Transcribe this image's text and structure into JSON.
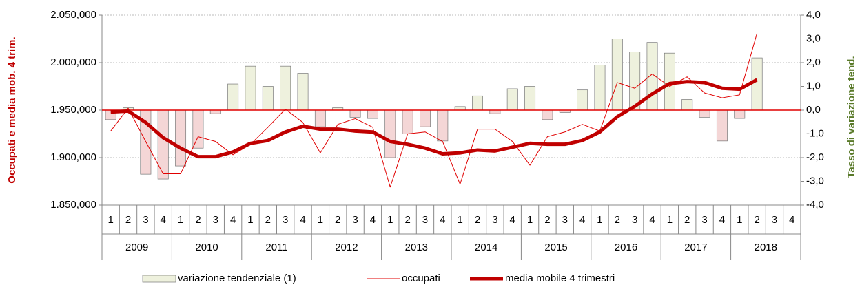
{
  "chart_data": {
    "type": "combo",
    "y_label": "Occupati e media mob. 4 trim.",
    "y2_label": "Tasso di variazione tend.",
    "categories": [
      "1",
      "2",
      "3",
      "4",
      "1",
      "2",
      "3",
      "4",
      "1",
      "2",
      "3",
      "4",
      "1",
      "2",
      "3",
      "4",
      "1",
      "2",
      "3",
      "4",
      "1",
      "2",
      "3",
      "4",
      "1",
      "2",
      "3",
      "4",
      "1",
      "2",
      "3",
      "4",
      "1",
      "2",
      "3",
      "4",
      "1",
      "2",
      "3",
      "4"
    ],
    "years": [
      "2009",
      "2010",
      "2011",
      "2012",
      "2013",
      "2014",
      "2015",
      "2016",
      "2017",
      "2018"
    ],
    "ylim": [
      1850000,
      2050000
    ],
    "yticks": [
      {
        "value": 1850000,
        "label": "1.850,000"
      },
      {
        "value": 1900000,
        "label": "1.900,000"
      },
      {
        "value": 1950000,
        "label": "1.950,000"
      },
      {
        "value": 2000000,
        "label": "2.000,000"
      },
      {
        "value": 2050000,
        "label": "2.050,000"
      }
    ],
    "y2lim": [
      -4,
      4
    ],
    "y2ticks": [
      {
        "value": -4,
        "label": "-4,0"
      },
      {
        "value": -3,
        "label": "-3,0"
      },
      {
        "value": -2,
        "label": "-2,0"
      },
      {
        "value": -1,
        "label": "-1,0"
      },
      {
        "value": 0,
        "label": "0,0"
      },
      {
        "value": 1,
        "label": "1,0"
      },
      {
        "value": 2,
        "label": "2,0"
      },
      {
        "value": 3,
        "label": "3,0"
      },
      {
        "value": 4,
        "label": "4,0"
      }
    ],
    "grid": true,
    "series": [
      {
        "name": "variazione tendenziale (1)",
        "kind": "bar",
        "axis": "y2",
        "color": "#eef1dd",
        "negative_color": "#f4d6d6",
        "values": [
          -0.4,
          0.1,
          -2.7,
          -2.9,
          -2.35,
          -1.6,
          -0.15,
          1.1,
          1.85,
          1.0,
          1.85,
          1.55,
          -0.7,
          0.1,
          -0.3,
          -0.35,
          -2.0,
          -1.0,
          -0.7,
          -1.3,
          0.15,
          0.6,
          -0.15,
          0.9,
          1.0,
          -0.4,
          -0.1,
          0.85,
          1.9,
          3.0,
          2.45,
          2.85,
          2.4,
          0.45,
          -0.3,
          -1.3,
          -0.35,
          2.2,
          null,
          null
        ]
      },
      {
        "name": "occupati",
        "kind": "line",
        "color": "#e00000",
        "width": 1,
        "values": [
          1928000,
          1952000,
          1917000,
          1883000,
          1883000,
          1922000,
          1917000,
          1903000,
          1914000,
          1932000,
          1951000,
          1937000,
          1905000,
          1935000,
          1941000,
          1932000,
          1869000,
          1925000,
          1927000,
          1917000,
          1872000,
          1930000,
          1930000,
          1917000,
          1892000,
          1922000,
          1927000,
          1935000,
          1928000,
          1979000,
          1973000,
          1988000,
          1975000,
          1985000,
          1968000,
          1963000,
          1966000,
          2031000,
          null,
          null
        ]
      },
      {
        "name": "media mobile 4 trimestri",
        "kind": "line",
        "color": "#c00000",
        "width": 5,
        "values": [
          1948000,
          1949000,
          1937000,
          1921000,
          1910000,
          1901000,
          1901000,
          1906000,
          1915000,
          1918000,
          1927000,
          1933000,
          1930000,
          1930000,
          1928000,
          1927000,
          1917000,
          1914000,
          1910000,
          1904000,
          1905000,
          1908000,
          1907000,
          1911000,
          1915000,
          1914000,
          1914000,
          1918000,
          1927000,
          1943000,
          1954000,
          1967000,
          1978000,
          1980000,
          1979000,
          1973000,
          1972000,
          1982000,
          null,
          null
        ]
      }
    ]
  }
}
